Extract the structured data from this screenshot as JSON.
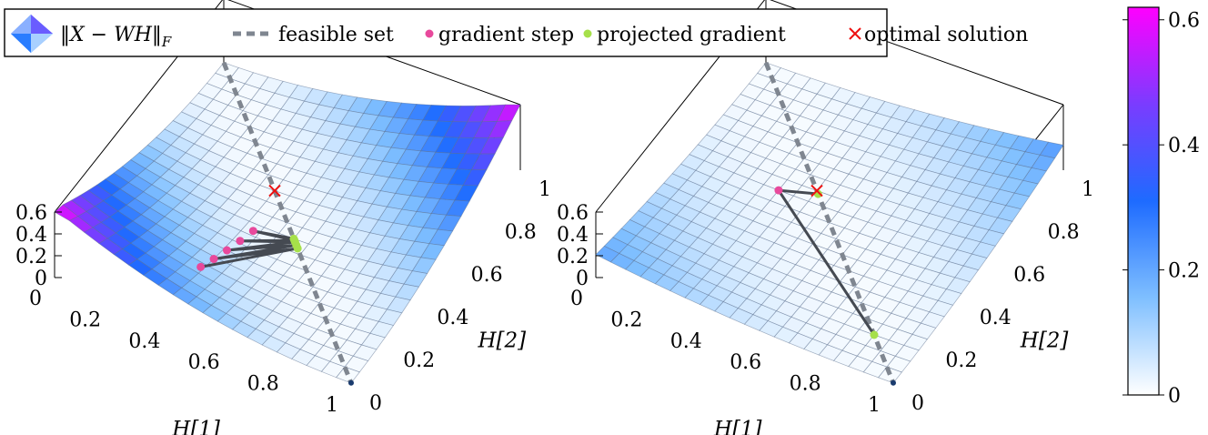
{
  "legend": {
    "entries": [
      {
        "label": "‖X − WH‖",
        "sub": "F",
        "symbol": "surface"
      },
      {
        "label": "feasible set",
        "symbol": "dashed-line",
        "color": "#7f8690"
      },
      {
        "label": "gradient step",
        "symbol": "dot",
        "color": "#e8499c"
      },
      {
        "label": "projected gradient",
        "symbol": "dot",
        "color": "#a6e04a"
      },
      {
        "label": "optimal solution",
        "symbol": "cross",
        "color": "#ee1111"
      }
    ]
  },
  "colorbar": {
    "ticks": [
      "0",
      "0.2",
      "0.4",
      "0.6"
    ],
    "range": [
      0,
      0.62
    ],
    "colors": [
      "#ffffff",
      "#7fbfff",
      "#1e6bff",
      "#7a3cff",
      "#ff00ff"
    ]
  },
  "chart_data": [
    {
      "type": "surface",
      "xlabel": "H[1]",
      "ylabel": "H[2]",
      "x_ticks": [
        "0",
        "0.2",
        "0.4",
        "0.6",
        "0.8",
        "1"
      ],
      "y_ticks": [
        "0",
        "0.2",
        "0.4",
        "0.6",
        "0.8",
        "1"
      ],
      "z_ticks": [
        "0",
        "0.2",
        "0.4",
        "0.6"
      ],
      "xlim": [
        0,
        1
      ],
      "ylim": [
        0,
        1
      ],
      "zlim": [
        0,
        0.6
      ],
      "optimal_solution": [
        0.4,
        0.6
      ],
      "feasible_set": [
        [
          0.0,
          1.0
        ],
        [
          1.0,
          0.0
        ]
      ],
      "gradient_steps": [
        [
          0.39,
          0.18
        ],
        [
          0.4,
          0.24
        ],
        [
          0.41,
          0.3
        ],
        [
          0.42,
          0.36
        ],
        [
          0.43,
          0.42
        ]
      ],
      "projected_gradients": [
        [
          0.58,
          0.42
        ],
        [
          0.57,
          0.43
        ],
        [
          0.56,
          0.44
        ],
        [
          0.555,
          0.445
        ],
        [
          0.55,
          0.45
        ]
      ]
    },
    {
      "type": "surface",
      "xlabel": "H[1]",
      "ylabel": "H[2]",
      "x_ticks": [
        "0",
        "0.2",
        "0.4",
        "0.6",
        "0.8",
        "1"
      ],
      "y_ticks": [
        "0",
        "0.2",
        "0.4",
        "0.6",
        "0.8",
        "1"
      ],
      "z_ticks": [
        "0",
        "0.2",
        "0.4",
        "0.6"
      ],
      "xlim": [
        0,
        1
      ],
      "ylim": [
        0,
        1
      ],
      "zlim": [
        0,
        0.6
      ],
      "optimal_solution": [
        0.4,
        0.6
      ],
      "feasible_set": [
        [
          0.0,
          1.0
        ],
        [
          1.0,
          0.0
        ]
      ],
      "gradient_steps": [
        [
          0.3,
          0.55
        ]
      ],
      "projected_gradients": [
        [
          0.85,
          0.15
        ],
        [
          0.41,
          0.59
        ]
      ]
    }
  ]
}
